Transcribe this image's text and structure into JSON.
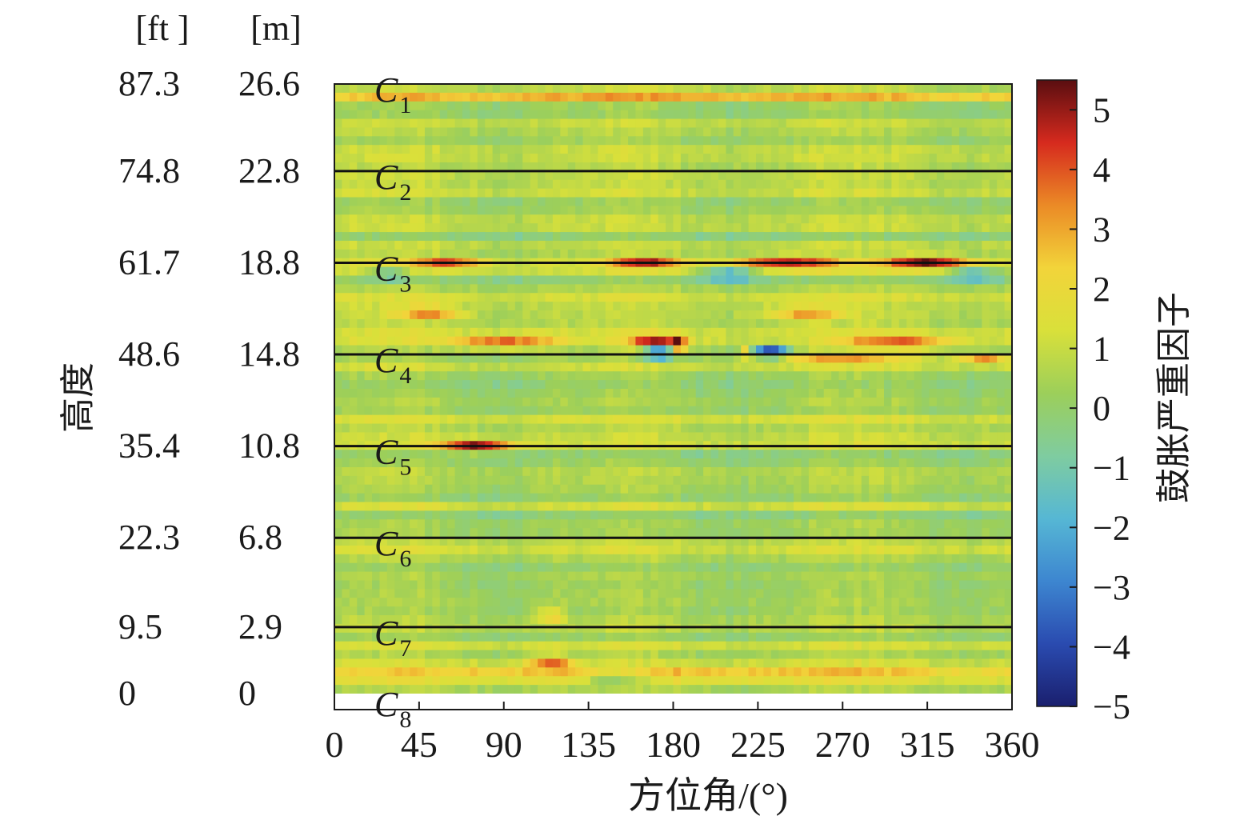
{
  "chart_data": {
    "type": "heatmap",
    "title": "",
    "xlabel": "方位角/(°)",
    "ylabel": "高度",
    "colorbar_label": "鼓胀严重因子",
    "x_range": [
      0,
      360
    ],
    "x_ticks": [
      "0",
      "45",
      "90",
      "135",
      "180",
      "225",
      "270",
      "315",
      "360"
    ],
    "y_unit_ft": "[ft ]",
    "y_unit_m": "[m]",
    "y_ticks_ft": [
      "87.3",
      "74.8",
      "61.7",
      "48.6",
      "35.4",
      "22.3",
      "9.5",
      "0"
    ],
    "y_ticks_m": [
      "26.6",
      "22.8",
      "18.8",
      "14.8",
      "10.8",
      "6.8",
      "2.9",
      "0"
    ],
    "y_range_m": [
      0,
      26.6
    ],
    "colorbar_range": [
      -5,
      5.5
    ],
    "colorbar_ticks": [
      "5",
      "4",
      "3",
      "2",
      "1",
      "0",
      "−1",
      "−2",
      "−3",
      "−4",
      "−5"
    ],
    "colorscale": [
      "#1a1f6e",
      "#2a4bb0",
      "#3d86d0",
      "#56b7d4",
      "#7fcca0",
      "#9ccf5a",
      "#d9e03a",
      "#f2d43a",
      "#eb8a26",
      "#d62a1e",
      "#5a0e10"
    ],
    "courses": [
      {
        "name": "C",
        "sub": "1",
        "height_m": 26.6
      },
      {
        "name": "C",
        "sub": "2",
        "height_m": 22.8
      },
      {
        "name": "C",
        "sub": "3",
        "height_m": 18.8
      },
      {
        "name": "C",
        "sub": "4",
        "height_m": 14.8
      },
      {
        "name": "C",
        "sub": "5",
        "height_m": 10.8
      },
      {
        "name": "C",
        "sub": "6",
        "height_m": 6.8
      },
      {
        "name": "C",
        "sub": "7",
        "height_m": 2.9
      },
      {
        "name": "C",
        "sub": "8",
        "height_m": 0
      }
    ],
    "field": {
      "background": 0.55,
      "hotspots": [
        {
          "az": 75,
          "h": 10.8,
          "v": 4.6,
          "saz": 14,
          "sh": 0.18
        },
        {
          "az": 170,
          "h": 15.3,
          "v": 4.8,
          "saz": 9,
          "sh": 0.22
        },
        {
          "az": 172,
          "h": 14.9,
          "v": -4.9,
          "saz": 6,
          "sh": 0.2
        },
        {
          "az": 183,
          "h": 15.2,
          "v": 3.8,
          "saz": 3,
          "sh": 0.3
        },
        {
          "az": 232,
          "h": 14.9,
          "v": -4.6,
          "saz": 6,
          "sh": 0.18
        },
        {
          "az": 218,
          "h": 14.9,
          "v": 3.2,
          "saz": 2,
          "sh": 0.18
        },
        {
          "az": 315,
          "h": 18.8,
          "v": 4.8,
          "saz": 16,
          "sh": 0.2
        },
        {
          "az": 240,
          "h": 18.8,
          "v": 4.2,
          "saz": 18,
          "sh": 0.2
        },
        {
          "az": 165,
          "h": 18.8,
          "v": 3.9,
          "saz": 14,
          "sh": 0.18
        },
        {
          "az": 60,
          "h": 18.8,
          "v": 3.5,
          "saz": 14,
          "sh": 0.18
        },
        {
          "az": 210,
          "h": 18.3,
          "v": -2.2,
          "saz": 10,
          "sh": 0.2
        },
        {
          "az": 340,
          "h": 18.3,
          "v": -1.8,
          "saz": 10,
          "sh": 0.2
        },
        {
          "az": 30,
          "h": 18.3,
          "v": -1.5,
          "saz": 8,
          "sh": 0.2
        },
        {
          "az": 90,
          "h": 15.3,
          "v": 3.6,
          "saz": 20,
          "sh": 0.2
        },
        {
          "az": 300,
          "h": 15.3,
          "v": 3.4,
          "saz": 20,
          "sh": 0.2
        },
        {
          "az": 270,
          "h": 14.7,
          "v": 3.5,
          "saz": 30,
          "sh": 0.15
        },
        {
          "az": 345,
          "h": 14.7,
          "v": 3.9,
          "saz": 10,
          "sh": 0.15
        },
        {
          "az": 50,
          "h": 16.6,
          "v": 3.3,
          "saz": 12,
          "sh": 0.2
        },
        {
          "az": 250,
          "h": 16.6,
          "v": 3.0,
          "saz": 14,
          "sh": 0.2
        },
        {
          "az": 115,
          "h": 1.4,
          "v": 3.6,
          "saz": 8,
          "sh": 0.18
        },
        {
          "az": 115,
          "h": 3.4,
          "v": 3.0,
          "saz": 5,
          "sh": 0.18
        },
        {
          "az": 150,
          "h": 0.7,
          "v": -1.6,
          "saz": 12,
          "sh": 0.25
        },
        {
          "az": 180,
          "h": 26.2,
          "v": 3.8,
          "saz": 200,
          "sh": 0.15
        },
        {
          "az": 180,
          "h": 0.8,
          "v": 3.8,
          "saz": 200,
          "sh": 0.15
        }
      ]
    }
  }
}
